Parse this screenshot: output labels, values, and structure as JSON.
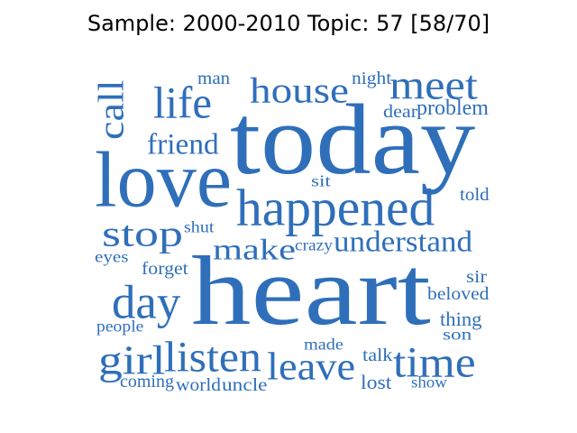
{
  "title": "Sample: 2000-2010 Topic: 57 [58/70]",
  "word_color": "#2f6fba",
  "words": [
    {
      "text": "heart"
    },
    {
      "text": "today"
    },
    {
      "text": "love"
    },
    {
      "text": "happened"
    },
    {
      "text": "meet"
    },
    {
      "text": "house"
    },
    {
      "text": "life"
    },
    {
      "text": "call"
    },
    {
      "text": "friend"
    },
    {
      "text": "stop"
    },
    {
      "text": "listen"
    },
    {
      "text": "girl"
    },
    {
      "text": "leave"
    },
    {
      "text": "time"
    },
    {
      "text": "day"
    },
    {
      "text": "understand"
    },
    {
      "text": "make"
    },
    {
      "text": "man"
    },
    {
      "text": "night"
    },
    {
      "text": "dear"
    },
    {
      "text": "problem"
    },
    {
      "text": "sit"
    },
    {
      "text": "told"
    },
    {
      "text": "shut"
    },
    {
      "text": "crazy"
    },
    {
      "text": "eyes"
    },
    {
      "text": "forget"
    },
    {
      "text": "sir"
    },
    {
      "text": "beloved"
    },
    {
      "text": "thing"
    },
    {
      "text": "son"
    },
    {
      "text": "people"
    },
    {
      "text": "made"
    },
    {
      "text": "talk"
    },
    {
      "text": "lost"
    },
    {
      "text": "show"
    },
    {
      "text": "coming"
    },
    {
      "text": "world"
    },
    {
      "text": "uncle"
    }
  ]
}
